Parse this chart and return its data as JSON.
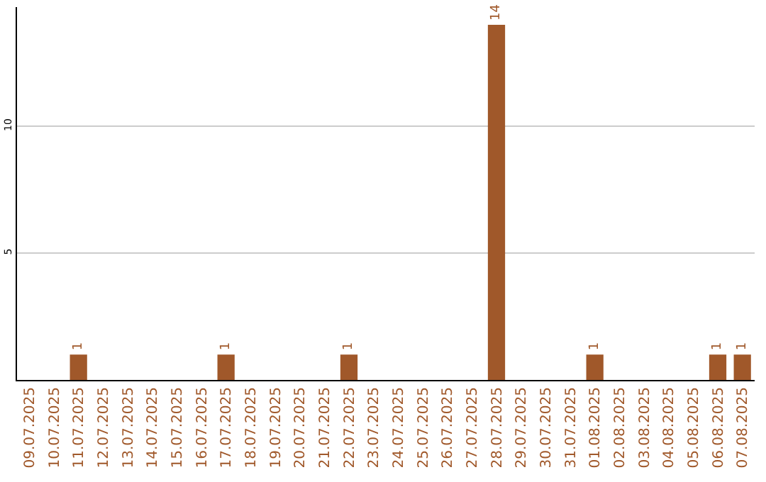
{
  "chart_data": {
    "type": "bar",
    "categories": [
      "09.07.2025",
      "10.07.2025",
      "11.07.2025",
      "12.07.2025",
      "13.07.2025",
      "14.07.2025",
      "15.07.2025",
      "16.07.2025",
      "17.07.2025",
      "18.07.2025",
      "19.07.2025",
      "20.07.2025",
      "21.07.2025",
      "22.07.2025",
      "23.07.2025",
      "24.07.2025",
      "25.07.2025",
      "26.07.2025",
      "27.07.2025",
      "28.07.2025",
      "29.07.2025",
      "30.07.2025",
      "31.07.2025",
      "01.08.2025",
      "02.08.2025",
      "03.08.2025",
      "04.08.2025",
      "05.08.2025",
      "06.08.2025",
      "07.08.2025"
    ],
    "values": [
      0,
      0,
      1,
      0,
      0,
      0,
      0,
      0,
      1,
      0,
      0,
      0,
      0,
      1,
      0,
      0,
      0,
      0,
      0,
      14,
      0,
      0,
      0,
      1,
      0,
      0,
      0,
      0,
      1,
      1
    ],
    "value_labels": [
      null,
      null,
      "1",
      null,
      null,
      null,
      null,
      null,
      "1",
      null,
      null,
      null,
      null,
      "1",
      null,
      null,
      null,
      null,
      null,
      "14",
      null,
      null,
      null,
      "1",
      null,
      null,
      null,
      null,
      "1",
      "1"
    ],
    "color": "#a0582a",
    "ylim": [
      0,
      14.7
    ],
    "yticks": [
      5,
      10
    ],
    "grid": "y",
    "legend": false
  }
}
